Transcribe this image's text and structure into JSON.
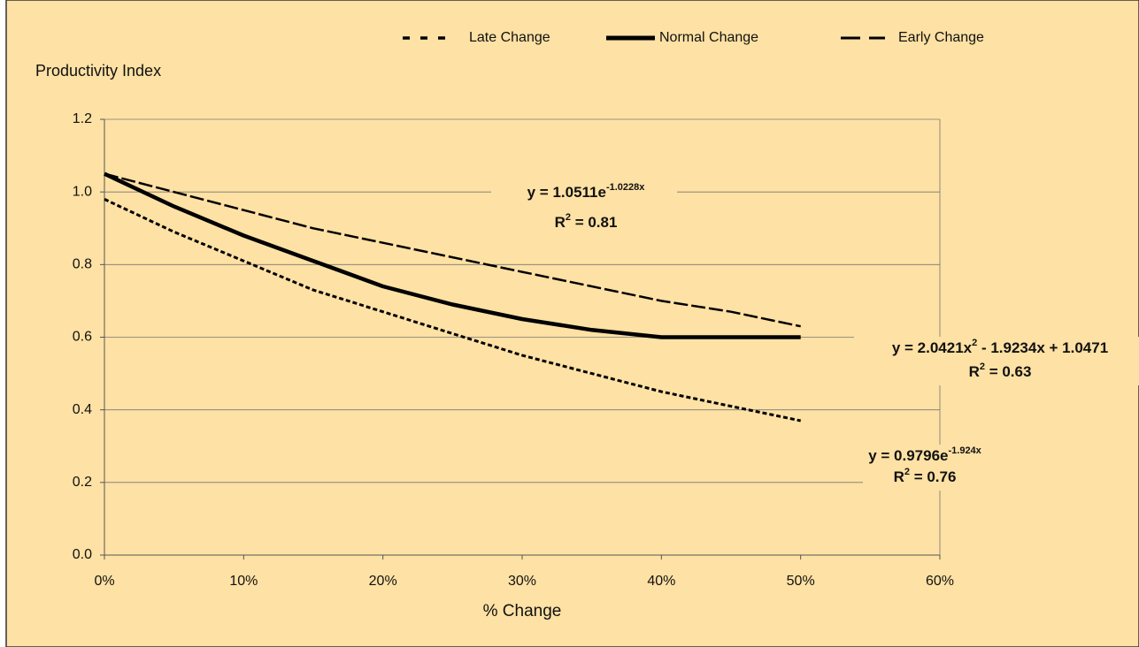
{
  "chart_data": {
    "type": "line",
    "y_axis_label": "Productivity Index",
    "x_axis_label": "% Change",
    "x": [
      0,
      5,
      10,
      15,
      20,
      25,
      30,
      35,
      40,
      45,
      50
    ],
    "series": [
      {
        "name": "Late Change",
        "color": "#000000",
        "line_style": "dotted",
        "values": [
          0.98,
          0.89,
          0.81,
          0.73,
          0.67,
          0.61,
          0.55,
          0.5,
          0.45,
          0.41,
          0.37
        ],
        "trendline": {
          "equation": [
            "y = 0.9796e",
            "-1.924x"
          ],
          "r2": [
            "R",
            "2",
            " = 0.76"
          ]
        }
      },
      {
        "name": "Normal Change",
        "color": "#000000",
        "line_style": "solid",
        "values": [
          1.05,
          0.96,
          0.88,
          0.81,
          0.74,
          0.69,
          0.65,
          0.62,
          0.6,
          0.6,
          0.6
        ],
        "trendline": {
          "equation": [
            "y = 2.0421x",
            "2",
            " - 1.9234x + 1.0471"
          ],
          "r2": [
            "R",
            "2",
            " = 0.63"
          ]
        }
      },
      {
        "name": "Early Change",
        "color": "#000000",
        "line_style": "dashed",
        "values": [
          1.05,
          1.0,
          0.95,
          0.9,
          0.86,
          0.82,
          0.78,
          0.74,
          0.7,
          0.67,
          0.63
        ],
        "trendline": {
          "equation": [
            "y = 1.0511e",
            "-1.0228x"
          ],
          "r2": [
            "R",
            "2",
            " = 0.81"
          ]
        }
      }
    ],
    "xlim": [
      0,
      60
    ],
    "xticks": [
      {
        "value": 0,
        "label": "0%"
      },
      {
        "value": 10,
        "label": "10%"
      },
      {
        "value": 20,
        "label": "20%"
      },
      {
        "value": 30,
        "label": "30%"
      },
      {
        "value": 40,
        "label": "40%"
      },
      {
        "value": 50,
        "label": "50%"
      },
      {
        "value": 60,
        "label": "60%"
      }
    ],
    "ylim": [
      0,
      1.2
    ],
    "yticks": [
      {
        "value": 0,
        "label": "0.0"
      },
      {
        "value": 0.2,
        "label": "0.2"
      },
      {
        "value": 0.4,
        "label": "0.4"
      },
      {
        "value": 0.6,
        "label": "0.6"
      },
      {
        "value": 0.8,
        "label": "0.8"
      },
      {
        "value": 1.0,
        "label": "1.0"
      },
      {
        "value": 1.2,
        "label": "1.2"
      }
    ],
    "grid": true
  }
}
